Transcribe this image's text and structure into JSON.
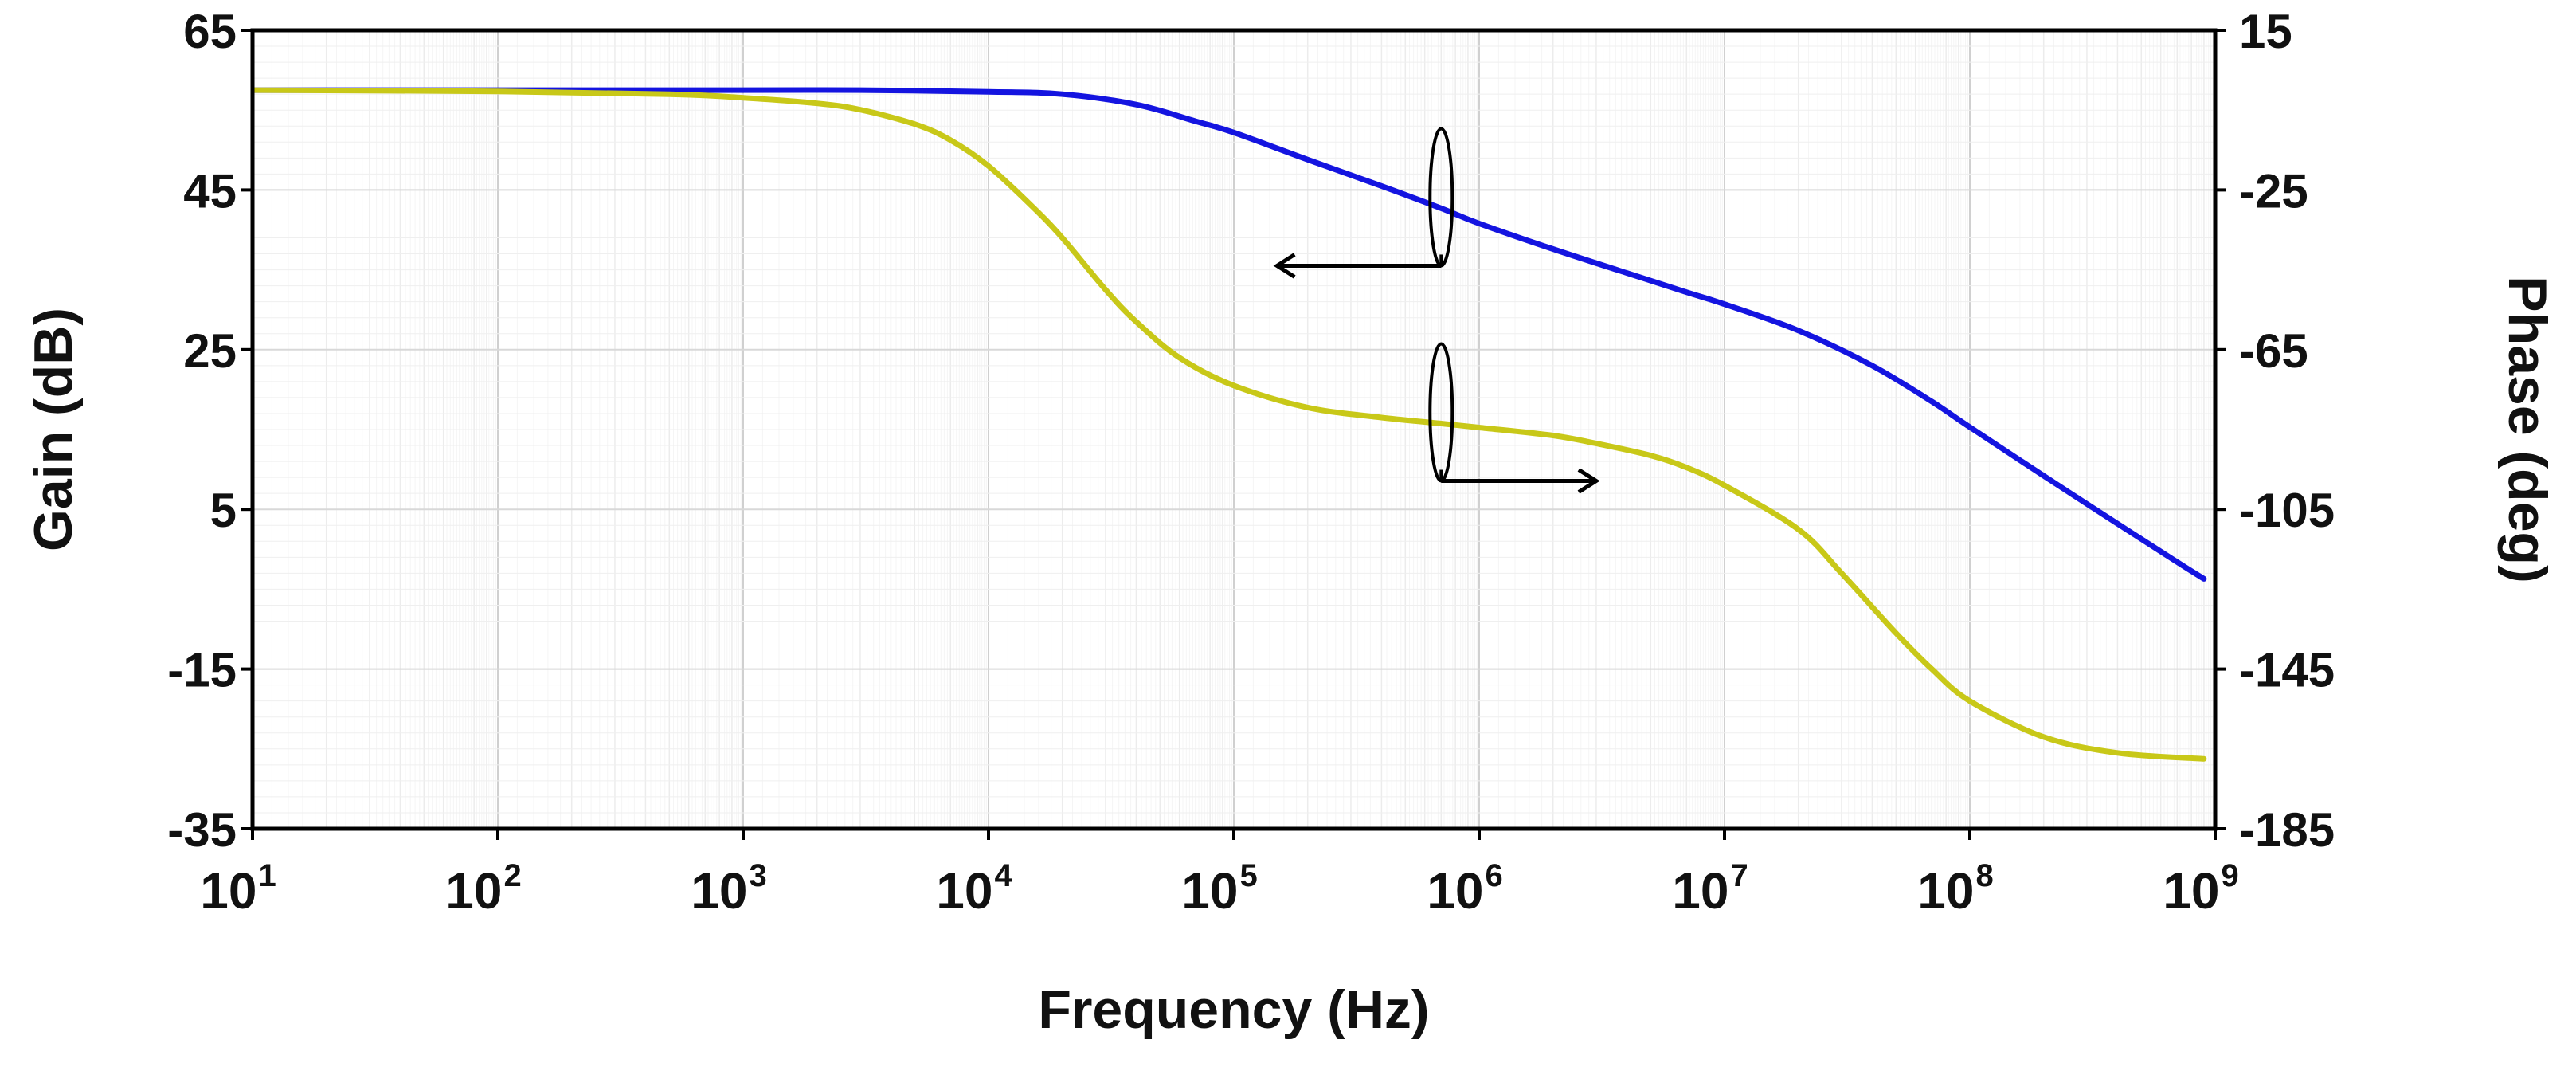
{
  "chart_data": {
    "type": "line",
    "title": "",
    "xlabel": "Frequency (Hz)",
    "ylabel": "Gain (dB)",
    "y2label": "Phase (deg)",
    "x_scale": "log",
    "xlim": [
      10,
      1000000000
    ],
    "ylim": [
      -35,
      65
    ],
    "y2lim": [
      -185,
      15
    ],
    "grid": true,
    "x_ticks": [
      {
        "base": "10",
        "exp": "1",
        "value": 10
      },
      {
        "base": "10",
        "exp": "2",
        "value": 100
      },
      {
        "base": "10",
        "exp": "3",
        "value": 1000
      },
      {
        "base": "10",
        "exp": "4",
        "value": 10000
      },
      {
        "base": "10",
        "exp": "5",
        "value": 100000
      },
      {
        "base": "10",
        "exp": "6",
        "value": 1000000
      },
      {
        "base": "10",
        "exp": "7",
        "value": 10000000
      },
      {
        "base": "10",
        "exp": "8",
        "value": 100000000
      },
      {
        "base": "10",
        "exp": "9",
        "value": 1000000000
      }
    ],
    "y_ticks": [
      {
        "label": "65",
        "value": 65
      },
      {
        "label": "45",
        "value": 45
      },
      {
        "label": "25",
        "value": 25
      },
      {
        "label": "5",
        "value": 5
      },
      {
        "label": "-15",
        "value": -15
      },
      {
        "label": "-35",
        "value": -35
      }
    ],
    "y2_ticks": [
      {
        "label": "15",
        "value": 15
      },
      {
        "label": "-25",
        "value": -25
      },
      {
        "label": "-65",
        "value": -65
      },
      {
        "label": "-105",
        "value": -105
      },
      {
        "label": "-145",
        "value": -145
      },
      {
        "label": "-185",
        "value": -185
      }
    ],
    "series": [
      {
        "name": "Gain",
        "axis": "left",
        "color": "#1414e0",
        "points": [
          [
            10,
            57.5
          ],
          [
            100,
            57.5
          ],
          [
            1000,
            57.5
          ],
          [
            3000,
            57.5
          ],
          [
            10000,
            57.3
          ],
          [
            20000,
            57.0
          ],
          [
            40000,
            55.7
          ],
          [
            70000,
            53.6
          ],
          [
            100000,
            52.2
          ],
          [
            200000,
            48.8
          ],
          [
            400000,
            45.5
          ],
          [
            700000,
            42.7
          ],
          [
            1000000,
            40.8
          ],
          [
            2000000,
            37.6
          ],
          [
            4000000,
            34.6
          ],
          [
            7000000,
            32.2
          ],
          [
            10000000,
            30.7
          ],
          [
            20000000,
            27.4
          ],
          [
            40000000,
            23.0
          ],
          [
            70000000,
            18.5
          ],
          [
            100000000,
            15.3
          ],
          [
            200000000,
            9.2
          ],
          [
            400000000,
            3.2
          ],
          [
            700000000,
            -1.6
          ],
          [
            900000000,
            -3.7
          ]
        ]
      },
      {
        "name": "Phase",
        "axis": "right",
        "color": "#c8c818",
        "points": [
          [
            10,
            0.0
          ],
          [
            100,
            -0.3
          ],
          [
            500,
            -1.0
          ],
          [
            1000,
            -1.9
          ],
          [
            2000,
            -3.3
          ],
          [
            3000,
            -4.9
          ],
          [
            5000,
            -8.5
          ],
          [
            7000,
            -12.5
          ],
          [
            10000,
            -19.0
          ],
          [
            15000,
            -29.0
          ],
          [
            20000,
            -37.0
          ],
          [
            30000,
            -50.0
          ],
          [
            40000,
            -58.0
          ],
          [
            60000,
            -67.0
          ],
          [
            100000,
            -74.0
          ],
          [
            200000,
            -79.5
          ],
          [
            400000,
            -82.0
          ],
          [
            700000,
            -83.5
          ],
          [
            1000000,
            -84.5
          ],
          [
            2000000,
            -86.5
          ],
          [
            3000000,
            -88.5
          ],
          [
            5000000,
            -91.5
          ],
          [
            7000000,
            -94.5
          ],
          [
            10000000,
            -99.0
          ],
          [
            20000000,
            -110.0
          ],
          [
            30000000,
            -121.0
          ],
          [
            50000000,
            -136.0
          ],
          [
            70000000,
            -145.0
          ],
          [
            100000000,
            -153.0
          ],
          [
            200000000,
            -162.0
          ],
          [
            400000000,
            -166.0
          ],
          [
            900000000,
            -167.5
          ]
        ]
      }
    ],
    "annotations": [
      {
        "type": "axis-indicator",
        "series": "Gain",
        "direction": "left",
        "at_x": 700000,
        "at_value": 42.7,
        "to_x": 150000
      },
      {
        "type": "axis-indicator",
        "series": "Phase",
        "direction": "right",
        "at_x": 700000,
        "at_value": -83.5,
        "to_x": 3000000
      }
    ]
  }
}
